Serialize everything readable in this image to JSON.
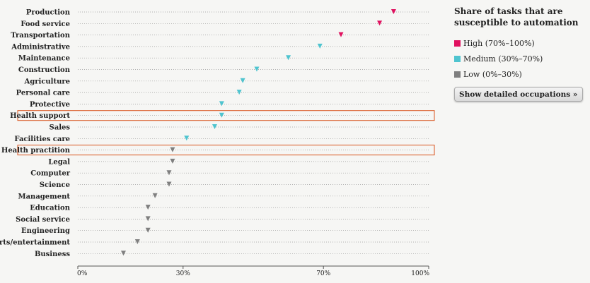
{
  "chart_data": {
    "type": "scatter",
    "marker": "triangle-down",
    "categories": [
      "Production",
      "Food service",
      "Transportation",
      "Administrative",
      "Maintenance",
      "Construction",
      "Agriculture",
      "Personal care",
      "Protective",
      "Health support",
      "Sales",
      "Facilities care",
      "Health practition",
      "Legal",
      "Computer",
      "Science",
      "Management",
      "Education",
      "Social service",
      "Engineering",
      "Arts/entertainment",
      "Business"
    ],
    "values": [
      90,
      86,
      75,
      69,
      60,
      51,
      47,
      46,
      41,
      41,
      39,
      31,
      27,
      27,
      26,
      26,
      22,
      20,
      20,
      20,
      17,
      13
    ],
    "levels": [
      "high",
      "high",
      "high",
      "medium",
      "medium",
      "medium",
      "medium",
      "medium",
      "medium",
      "medium",
      "medium",
      "medium",
      "low",
      "low",
      "low",
      "low",
      "low",
      "low",
      "low",
      "low",
      "low",
      "low"
    ],
    "highlighted": [
      "Health support",
      "Health practition"
    ],
    "xlim": [
      0,
      100
    ],
    "xticks": [
      0,
      30,
      70,
      100
    ],
    "xtick_labels": [
      "0%",
      "30%",
      "70%",
      "100%"
    ],
    "colors": {
      "high": "#e0115f",
      "medium": "#4fc4cf",
      "low": "#7f7f7f",
      "highlight_box": "#d9541e",
      "gridline": "#999999"
    },
    "legend": {
      "title": "Share of tasks that are susceptible to automation",
      "placement": "right",
      "items": [
        {
          "key": "high",
          "label": "High (70%–100%)"
        },
        {
          "key": "medium",
          "label": "Medium (30%–70%)"
        },
        {
          "key": "low",
          "label": "Low (0%–30%)"
        }
      ]
    }
  },
  "button": {
    "label": "Show detailed occupations »"
  }
}
